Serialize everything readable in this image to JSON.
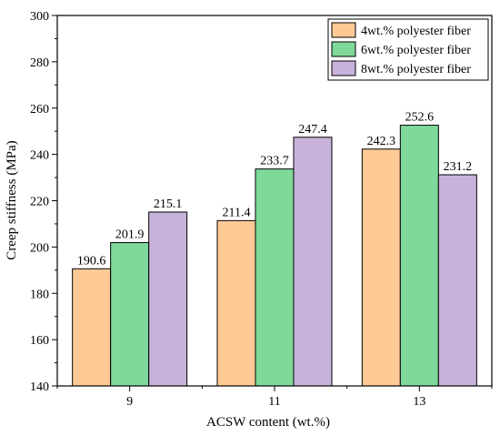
{
  "chart_data": {
    "type": "bar",
    "categories": [
      "9",
      "11",
      "13"
    ],
    "series": [
      {
        "name": "4wt.% polyester fiber",
        "values": [
          190.6,
          211.4,
          242.3
        ],
        "color": "#FDC995"
      },
      {
        "name": "6wt.% polyester fiber",
        "values": [
          201.9,
          233.7,
          252.6
        ],
        "color": "#7FD99A"
      },
      {
        "name": "8wt.% polyester fiber",
        "values": [
          215.1,
          247.4,
          231.2
        ],
        "color": "#C8B2DA"
      }
    ],
    "data_labels": [
      [
        "190.6",
        "211.4",
        "242.3"
      ],
      [
        "201.9",
        "233.7",
        "252.6"
      ],
      [
        "215.1",
        "247.4",
        "231.2"
      ]
    ],
    "title": "",
    "xlabel": "ACSW content (wt.%)",
    "ylabel": "Creep stiffness (MPa)",
    "ylim": [
      140,
      300
    ],
    "yticks": [
      "140",
      "160",
      "180",
      "200",
      "220",
      "240",
      "260",
      "280",
      "300"
    ],
    "grid": false,
    "legend_position": "top-right"
  }
}
